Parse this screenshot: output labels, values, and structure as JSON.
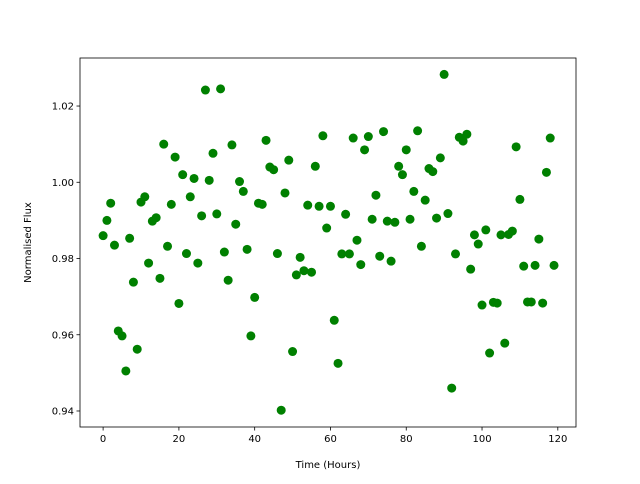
{
  "chart_data": {
    "type": "scatter",
    "title": "",
    "xlabel": "Time (Hours)",
    "ylabel": "Normalised Flux",
    "xlim": [
      -6.1,
      124.8
    ],
    "ylim": [
      0.9358,
      1.0326
    ],
    "xticks": [
      0,
      20,
      40,
      60,
      80,
      100,
      120
    ],
    "xtick_labels": [
      "0",
      "20",
      "40",
      "60",
      "80",
      "100",
      "120"
    ],
    "yticks": [
      0.94,
      0.96,
      0.98,
      1.0,
      1.02
    ],
    "ytick_labels": [
      "0.94",
      "0.96",
      "0.98",
      "1.00",
      "1.02"
    ],
    "grid": false,
    "marker_color": "#008000",
    "x": [
      0,
      1,
      2,
      3,
      4,
      5,
      6,
      7,
      8,
      9,
      10,
      11,
      12,
      13,
      14,
      15,
      16,
      17,
      18,
      19,
      20,
      21,
      22,
      23,
      24,
      25,
      26,
      27,
      28,
      29,
      30,
      31,
      32,
      33,
      34,
      35,
      36,
      37,
      38,
      39,
      40,
      41,
      42,
      43,
      44,
      45,
      46,
      47,
      48,
      49,
      50,
      51,
      52,
      53,
      54,
      55,
      56,
      57,
      58,
      59,
      60,
      61,
      62,
      63,
      64,
      65,
      66,
      67,
      68,
      69,
      70,
      71,
      72,
      73,
      74,
      75,
      76,
      77,
      78,
      79,
      80,
      81,
      82,
      83,
      84,
      85,
      86,
      87,
      88,
      89,
      90,
      91,
      92,
      93,
      94,
      95,
      96,
      97,
      98,
      99,
      100,
      101,
      102,
      103,
      104,
      105,
      106,
      107,
      108,
      109,
      110,
      111,
      112,
      113,
      114,
      115,
      116,
      117,
      118,
      119
    ],
    "y": [
      0.986,
      0.99,
      0.9945,
      0.9835,
      0.961,
      0.9597,
      0.9505,
      0.9853,
      0.9738,
      0.9562,
      0.9948,
      0.9962,
      0.9788,
      0.9898,
      0.9907,
      0.9748,
      1.01,
      0.9832,
      0.9942,
      1.0066,
      0.9682,
      1.002,
      0.9813,
      0.9962,
      1.001,
      0.9788,
      0.9912,
      1.0242,
      1.0005,
      1.0076,
      0.9917,
      1.0245,
      0.9817,
      0.9743,
      1.0098,
      0.989,
      1.0002,
      0.9976,
      0.9824,
      0.9597,
      0.9698,
      0.9945,
      0.9942,
      1.011,
      1.004,
      1.0033,
      0.9813,
      0.9402,
      0.9972,
      1.0058,
      0.9556,
      0.9757,
      0.9803,
      0.9768,
      0.994,
      0.9764,
      1.0042,
      0.9937,
      1.0122,
      0.988,
      0.9937,
      0.9638,
      0.9525,
      0.9812,
      0.9916,
      0.9812,
      1.0116,
      0.9848,
      0.9784,
      1.0085,
      1.012,
      0.9903,
      0.9966,
      0.9806,
      1.0133,
      0.9898,
      0.9793,
      0.9895,
      1.0042,
      1.002,
      1.0085,
      0.9903,
      0.9976,
      1.0135,
      0.9832,
      0.9953,
      1.0036,
      1.0028,
      0.9906,
      1.0064,
      1.0283,
      0.9918,
      0.946,
      0.9812,
      1.0118,
      1.0108,
      1.0126,
      0.9772,
      0.9862,
      0.9838,
      0.9678,
      0.9875,
      0.9552,
      0.9685,
      0.9683,
      0.9862,
      0.9578,
      0.9863,
      0.9872,
      1.0093,
      0.9955,
      0.978,
      0.9686,
      0.9686,
      0.9782,
      0.9851,
      0.9683,
      1.0026,
      1.0116,
      0.9782
    ]
  }
}
